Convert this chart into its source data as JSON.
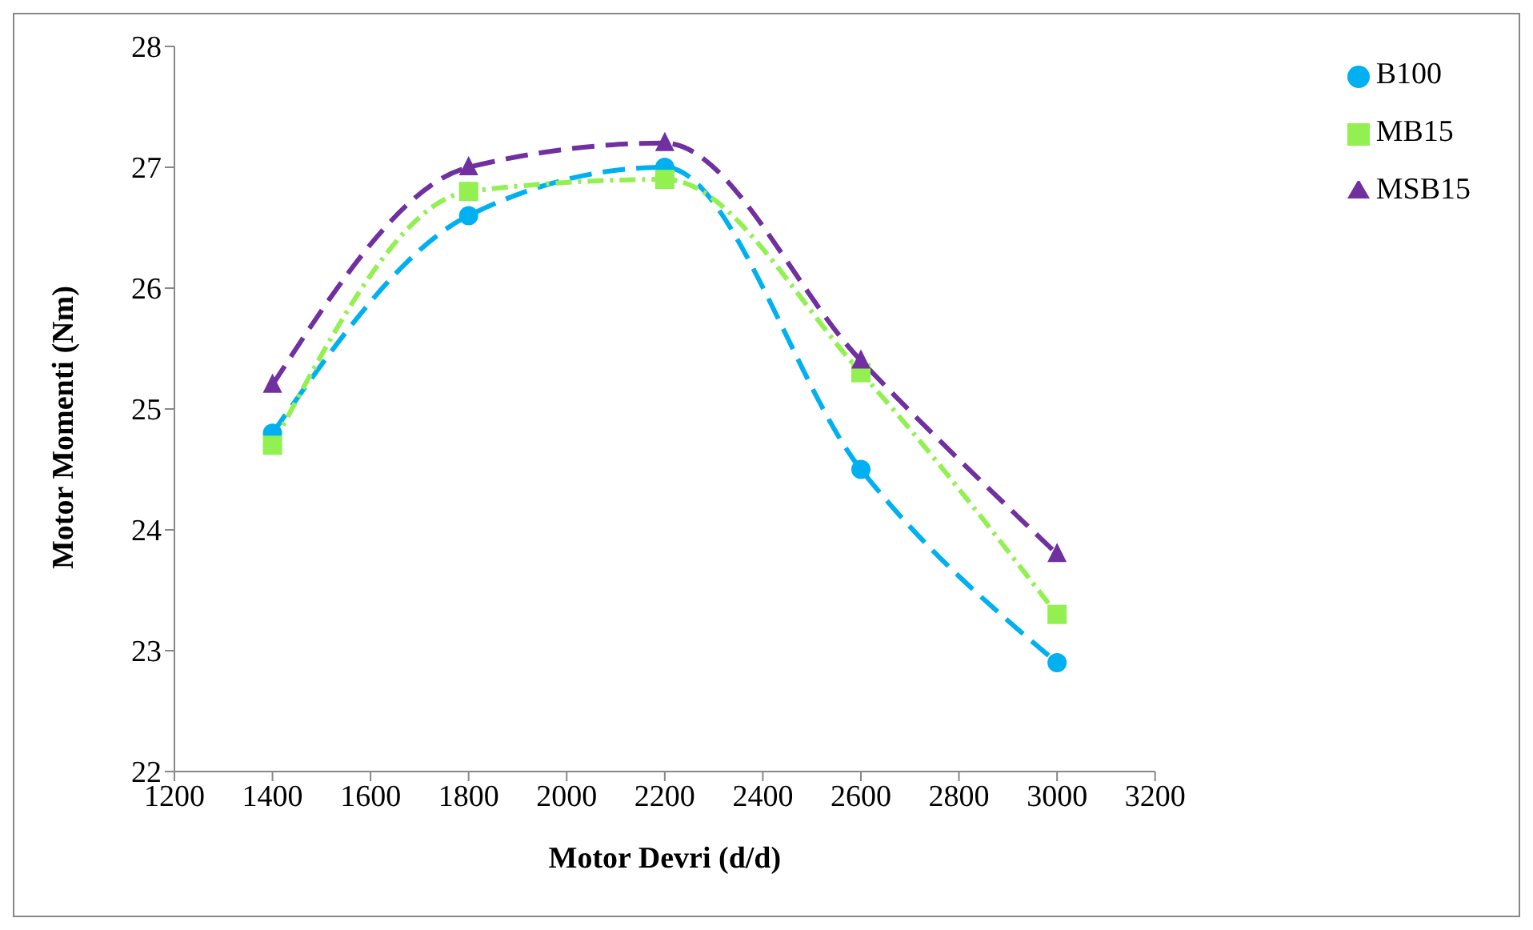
{
  "chart_data": {
    "type": "line",
    "xlabel": "Motor Devri (d/d)",
    "ylabel": "Motor Momenti (Nm)",
    "x": [
      1400,
      1800,
      2200,
      2600,
      3000
    ],
    "series": [
      {
        "name": "B100",
        "color": "#00b0f0",
        "values": [
          24.8,
          26.6,
          27.0,
          24.5,
          22.9
        ],
        "marker": "circle",
        "line_style": "dashed"
      },
      {
        "name": "MB15",
        "color": "#92f050",
        "values": [
          24.7,
          26.8,
          26.9,
          25.3,
          23.3
        ],
        "marker": "square",
        "line_style": "dotted"
      },
      {
        "name": "MSB15",
        "color": "#7030a0",
        "values": [
          25.2,
          27.0,
          27.2,
          25.4,
          23.8
        ],
        "marker": "triangle",
        "line_style": "dashed"
      }
    ],
    "xlim": [
      1200,
      3200
    ],
    "xticks": [
      1200,
      1400,
      1600,
      1800,
      2000,
      2200,
      2400,
      2600,
      2800,
      3000,
      3200
    ],
    "ylim": [
      22,
      28
    ],
    "yticks": [
      22,
      23,
      24,
      25,
      26,
      27,
      28
    ],
    "grid": false,
    "legend": "top right"
  }
}
